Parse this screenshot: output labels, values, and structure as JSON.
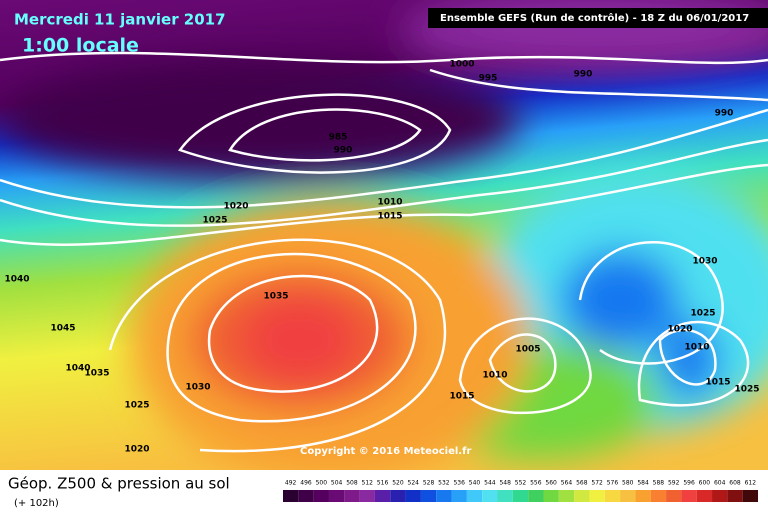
{
  "header": {
    "title": "Mercredi 11 janvier 2017",
    "subtitle": "1:00 locale",
    "run": "Ensemble GEFS  (Run de contrôle)  -  18 Z du 06/01/2017"
  },
  "isobar_labels": [
    "1000",
    "995",
    "990",
    "990",
    "985",
    "990",
    "1010",
    "1015",
    "1020",
    "1025",
    "1040",
    "1045",
    "1040",
    "1035",
    "1035",
    "1030",
    "1025",
    "1020",
    "1015",
    "1005",
    "1010",
    "1010",
    "1020",
    "1025",
    "1030",
    "1015",
    "1025"
  ],
  "copyright": "Copyright © 2016 Meteociel.fr",
  "footer": {
    "title": "Géop. Z500 & pression au sol",
    "subtitle": "(+ 102h)"
  },
  "scale": [
    492,
    496,
    500,
    504,
    508,
    512,
    516,
    520,
    524,
    528,
    532,
    536,
    540,
    544,
    548,
    552,
    556,
    560,
    564,
    568,
    572,
    576,
    580,
    584,
    588,
    592,
    596,
    600,
    604,
    608,
    612
  ]
}
